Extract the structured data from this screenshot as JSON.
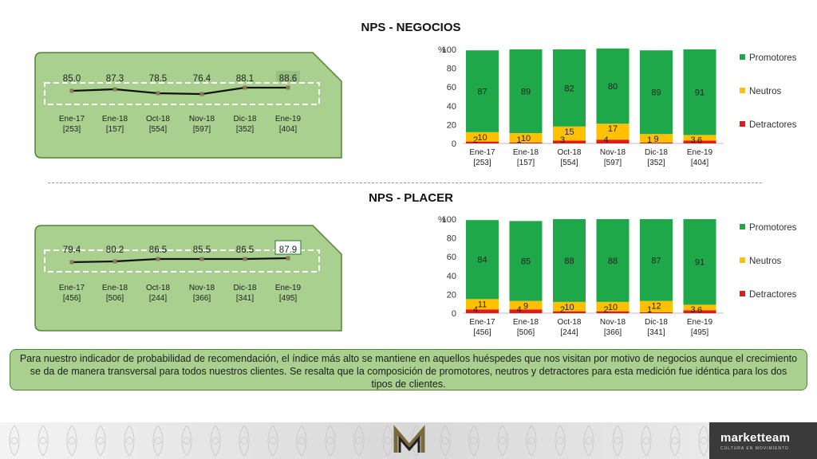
{
  "sections": [
    {
      "title": "NPS - NEGOCIOS",
      "trend": {
        "values": [
          "85.0",
          "87.3",
          "78.5",
          "76.4",
          "88.1",
          "88.6"
        ],
        "highlight_index": 5,
        "labels": [
          "Ene-17",
          "Ene-18",
          "Oct-18",
          "Nov-18",
          "Dic-18",
          "Ene-19"
        ],
        "bases": [
          "[253]",
          "[157]",
          "[554]",
          "[597]",
          "[352]",
          "[404]"
        ]
      }
    },
    {
      "title": "NPS - PLACER",
      "trend": {
        "values": [
          "79.4",
          "80.2",
          "86.5",
          "85.5",
          "86.5",
          "87.9"
        ],
        "highlight_index": 5,
        "labels": [
          "Ene-17",
          "Ene-18",
          "Oct-18",
          "Nov-18",
          "Dic-18",
          "Ene-19"
        ],
        "bases": [
          "[456]",
          "[506]",
          "[244]",
          "[366]",
          "[341]",
          "[495]"
        ]
      }
    }
  ],
  "chart_data": [
    {
      "type": "bar",
      "stacked": true,
      "title": "NPS - NEGOCIOS",
      "ylabel": "%",
      "ylim": [
        0,
        100
      ],
      "yticks": [
        0,
        20,
        40,
        60,
        80,
        100
      ],
      "categories": [
        "Ene-17",
        "Ene-18",
        "Oct-18",
        "Nov-18",
        "Dic-18",
        "Ene-19"
      ],
      "category_bases": [
        "[253]",
        "[157]",
        "[554]",
        "[597]",
        "[352]",
        "[404]"
      ],
      "series": [
        {
          "name": "Detractores",
          "color": "#e31a1c",
          "values": [
            2,
            1,
            3,
            4,
            1,
            3
          ]
        },
        {
          "name": "Neutros",
          "color": "#ffc000",
          "values": [
            10,
            10,
            15,
            17,
            9,
            6
          ]
        },
        {
          "name": "Promotores",
          "color": "#1fa84a",
          "values": [
            87,
            89,
            82,
            80,
            89,
            91
          ]
        }
      ],
      "legend": "right"
    },
    {
      "type": "bar",
      "stacked": true,
      "title": "NPS - PLACER",
      "ylabel": "%",
      "ylim": [
        0,
        100
      ],
      "yticks": [
        0,
        20,
        40,
        60,
        80,
        100
      ],
      "categories": [
        "Ene-17",
        "Ene-18",
        "Oct-18",
        "Nov-18",
        "Dic-18",
        "Ene-19"
      ],
      "category_bases": [
        "[456]",
        "[506]",
        "[244]",
        "[366]",
        "[341]",
        "[495]"
      ],
      "series": [
        {
          "name": "Detractores",
          "color": "#e31a1c",
          "values": [
            4,
            4,
            2,
            2,
            1,
            3
          ]
        },
        {
          "name": "Neutros",
          "color": "#ffc000",
          "values": [
            11,
            9,
            10,
            10,
            12,
            6
          ]
        },
        {
          "name": "Promotores",
          "color": "#1fa84a",
          "values": [
            84,
            85,
            88,
            88,
            87,
            91
          ]
        }
      ],
      "legend": "right"
    }
  ],
  "note": "Para nuestro indicador de probabilidad de recomendación, el índice más alto se mantiene en aquellos huéspedes que nos visitan por motivo de negocios aunque el crecimiento se da de manera transversal para todos nuestros clientes. Se resalta que la composición de promotores, neutros y detractores para esta medición fue idéntica para los dos tipos de clientes.",
  "footer": {
    "brand": "marketteam",
    "brand_sub": "CULTURA EN MOVIMIENTO",
    "logo_icon": "mm-logo-icon"
  },
  "colors": {
    "panel_fill": "#a9d08e",
    "panel_border": "#548235",
    "promotores": "#1fa84a",
    "neutros": "#ffc000",
    "detractores": "#e31a1c"
  }
}
